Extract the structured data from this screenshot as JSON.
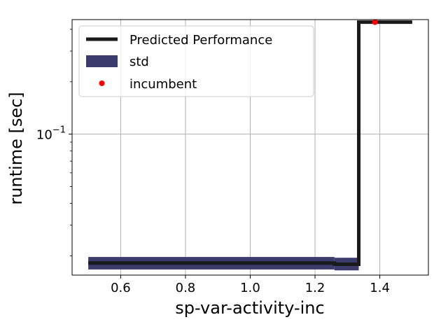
{
  "chart_data": {
    "type": "line",
    "xlabel": "sp-var-activity-inc",
    "ylabel": "runtime [sec]",
    "yscale": "log",
    "xlim": [
      0.45,
      1.55
    ],
    "ylim": [
      0.0155,
      0.455
    ],
    "x_ticks": [
      {
        "value": 0.6,
        "label": "0.6"
      },
      {
        "value": 0.8,
        "label": "0.8"
      },
      {
        "value": 1.0,
        "label": "1.0"
      },
      {
        "value": 1.2,
        "label": "1.2"
      },
      {
        "value": 1.4,
        "label": "1.4"
      }
    ],
    "y_major_tick": {
      "value": 0.1,
      "base": "10",
      "exponent": "−1"
    },
    "y_minor_ticks": [
      0.02,
      0.03,
      0.04,
      0.05,
      0.06,
      0.07,
      0.08,
      0.09,
      0.2,
      0.3,
      0.4
    ],
    "grid": true,
    "legend_position": "upper-left",
    "series": [
      {
        "name": "Predicted Performance",
        "kind": "step-line",
        "color": "#1a1a1a",
        "x": [
          0.5,
          1.26,
          1.26,
          1.335,
          1.335,
          1.5
        ],
        "y": [
          0.0182,
          0.0182,
          0.0179,
          0.0179,
          0.44,
          0.44
        ]
      },
      {
        "name": "std",
        "kind": "band",
        "color": "#3b3b6e",
        "bands": [
          {
            "x0": 0.5,
            "x1": 1.26,
            "y_low": 0.0167,
            "y_high": 0.0197
          },
          {
            "x0": 1.26,
            "x1": 1.335,
            "y_low": 0.0165,
            "y_high": 0.0195
          }
        ]
      },
      {
        "name": "incumbent",
        "kind": "scatter",
        "color": "#ff0000",
        "x": [
          1.385
        ],
        "y": [
          0.44
        ]
      }
    ]
  }
}
